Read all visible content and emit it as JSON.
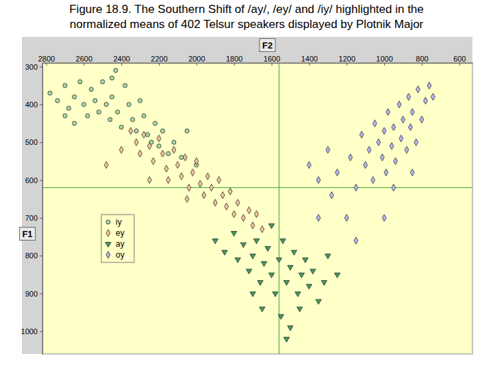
{
  "chart_data": {
    "type": "scatter",
    "title": [
      "Figure 18.9. The Southern Shift of /ay/, /ey/ and /iy/ highlighted in the",
      "normalized means of 402 Telsur speakers displayed by Plotnik Major"
    ],
    "x_label": "F2",
    "y_label": "F1",
    "xlim": [
      2820,
      530
    ],
    "ylim": [
      290,
      1060
    ],
    "xticks": [
      2800,
      2600,
      2400,
      2200,
      2000,
      1800,
      1600,
      1400,
      1200,
      1000,
      800,
      600
    ],
    "yticks": [
      300,
      400,
      500,
      600,
      700,
      800,
      900,
      1000
    ],
    "grid": false,
    "legend": "left",
    "reference_lines": {
      "x": 1560,
      "y": 620
    },
    "series": [
      {
        "name": "iy",
        "color": "#a6d9a6",
        "marker": "circle",
        "x": [
          2780,
          2740,
          2700,
          2680,
          2650,
          2620,
          2600,
          2580,
          2560,
          2540,
          2520,
          2500,
          2480,
          2460,
          2450,
          2430,
          2420,
          2400,
          2380,
          2360,
          2340,
          2320,
          2300,
          2280,
          2260,
          2240,
          2220,
          2200,
          2180,
          2150,
          2120,
          2080,
          2050,
          2000,
          2650,
          2450,
          2700
        ],
        "values": [
          370,
          390,
          350,
          410,
          380,
          340,
          400,
          430,
          360,
          390,
          420,
          340,
          400,
          440,
          380,
          310,
          420,
          460,
          350,
          400,
          440,
          470,
          390,
          430,
          480,
          500,
          450,
          510,
          470,
          530,
          500,
          540,
          470,
          560,
          450,
          330,
          430
        ]
      },
      {
        "name": "ey",
        "color": "#f2c59c",
        "marker": "diamond",
        "x": [
          2350,
          2320,
          2300,
          2280,
          2250,
          2230,
          2200,
          2180,
          2160,
          2150,
          2120,
          2100,
          2080,
          2060,
          2040,
          2020,
          2000,
          1980,
          1960,
          1940,
          1920,
          1900,
          1880,
          1860,
          1840,
          1820,
          1800,
          1780,
          1750,
          1720,
          1700,
          1680,
          2400,
          2250,
          2050,
          1650,
          2480
        ],
        "values": [
          470,
          500,
          530,
          480,
          510,
          550,
          490,
          530,
          570,
          600,
          520,
          560,
          590,
          540,
          620,
          580,
          550,
          610,
          640,
          590,
          620,
          660,
          600,
          640,
          670,
          630,
          690,
          660,
          700,
          680,
          720,
          690,
          520,
          600,
          650,
          730,
          560
        ]
      },
      {
        "name": "ay",
        "color": "#3f9e5f",
        "marker": "triangle",
        "x": [
          1900,
          1850,
          1800,
          1780,
          1750,
          1720,
          1700,
          1680,
          1660,
          1640,
          1620,
          1600,
          1580,
          1560,
          1540,
          1520,
          1500,
          1480,
          1460,
          1440,
          1420,
          1400,
          1380,
          1350,
          1320,
          1300,
          1550,
          1500,
          1450,
          1600,
          1700,
          1250,
          1650,
          1520
        ],
        "values": [
          760,
          790,
          740,
          810,
          770,
          840,
          800,
          760,
          870,
          820,
          780,
          850,
          900,
          810,
          760,
          870,
          830,
          790,
          900,
          850,
          810,
          880,
          840,
          920,
          870,
          800,
          960,
          990,
          940,
          720,
          900,
          850,
          940,
          1020
        ]
      },
      {
        "name": "oy",
        "color": "#b3b8f2",
        "marker": "diamond",
        "x": [
          1400,
          1350,
          1300,
          1280,
          1250,
          1200,
          1180,
          1150,
          1120,
          1100,
          1080,
          1060,
          1050,
          1030,
          1010,
          1000,
          990,
          980,
          960,
          950,
          940,
          920,
          910,
          900,
          880,
          870,
          860,
          850,
          830,
          820,
          800,
          780,
          760,
          1000,
          1150,
          950,
          1350,
          850,
          740
        ],
        "values": [
          560,
          600,
          520,
          640,
          580,
          700,
          540,
          620,
          480,
          560,
          520,
          600,
          450,
          500,
          540,
          470,
          580,
          420,
          510,
          460,
          550,
          400,
          490,
          440,
          520,
          380,
          460,
          420,
          500,
          360,
          440,
          390,
          350,
          700,
          760,
          620,
          700,
          580,
          380
        ]
      }
    ]
  }
}
